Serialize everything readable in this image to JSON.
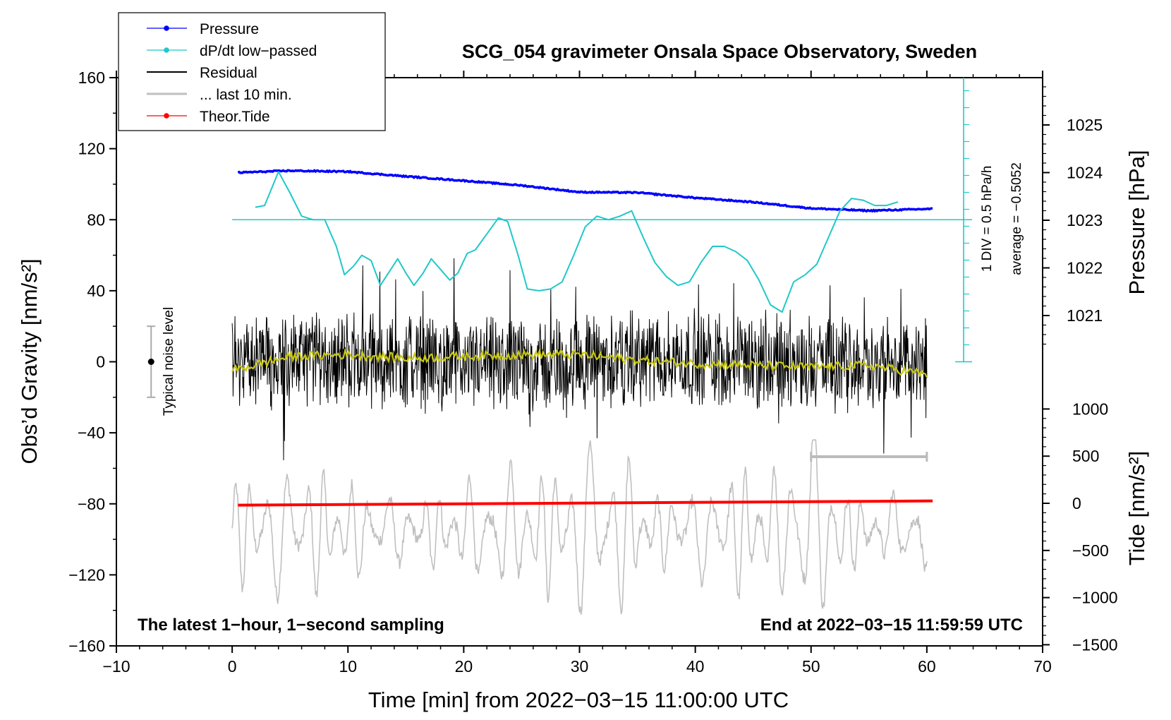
{
  "chart_data": {
    "type": "line",
    "title": "SCG_054 gravimeter Onsala Space Observatory, Sweden",
    "xlabel": "Time [min] from 2022−03−15 11:00:00 UTC",
    "ylabel": "Obs’d Gravity [nm/s²]",
    "ylabel_right_top": "Pressure [hPa]",
    "ylabel_right_bottom": "Tide [nm/s²]",
    "xlim": [
      -10,
      70
    ],
    "ylim": [
      -160,
      160
    ],
    "x_ticks": [
      -10,
      0,
      10,
      20,
      30,
      40,
      50,
      60,
      70
    ],
    "x_tick_labels": [
      "−10",
      "0",
      "10",
      "20",
      "30",
      "40",
      "50",
      "60",
      "70"
    ],
    "y_ticks": [
      -160,
      -120,
      -80,
      -40,
      0,
      40,
      80,
      120,
      160
    ],
    "y_tick_labels": [
      "−160",
      "−120",
      "−80",
      "−40",
      "0",
      "40",
      "80",
      "120",
      "160"
    ],
    "pressure_axis": {
      "ticks": [
        1021,
        1022,
        1023,
        1024,
        1025
      ],
      "labels": [
        "1021",
        "1022",
        "1023",
        "1024",
        "1025"
      ]
    },
    "tide_axis": {
      "ticks": [
        -1500,
        -1000,
        -500,
        0,
        500,
        1000
      ],
      "labels": [
        "−1500",
        "−1000",
        "−500",
        "0",
        "500",
        "1000"
      ]
    },
    "legend": [
      {
        "label": "Pressure",
        "color": "#0000ff",
        "marker": true
      },
      {
        "label": "dP/dt low−passed",
        "color": "#20c8c8",
        "marker": true
      },
      {
        "label": "Residual",
        "color": "#000000",
        "marker": false
      },
      {
        "label": "... last 10 min.",
        "color": "#c0c0c0",
        "marker": false
      },
      {
        "label": "Theor.Tide",
        "color": "#ff0000",
        "marker": true
      }
    ],
    "annotations": {
      "bottom_left": "The latest 1−hour, 1−second sampling",
      "bottom_right": "End at 2022−03−15 11:59:59 UTC",
      "noise_label": "Typical noise level",
      "dpdt_scale": "1 DIV = 0.5 hPa/h",
      "dpdt_average": "average = −0.5052"
    },
    "series": [
      {
        "name": "Pressure",
        "color": "#0000ff",
        "unit": "hPa",
        "x": [
          0.5,
          5,
          10,
          15,
          20,
          25,
          30,
          35,
          40,
          45,
          50,
          55,
          60.5
        ],
        "values": [
          1024.0,
          1024.04,
          1024.02,
          1023.92,
          1023.83,
          1023.73,
          1023.59,
          1023.58,
          1023.47,
          1023.38,
          1023.25,
          1023.2,
          1023.24
        ]
      },
      {
        "name": "dP/dt low−passed",
        "color": "#20c8c8",
        "unit": "ygrid",
        "x": [
          2,
          2.8,
          4,
          5,
          6,
          7,
          8,
          9,
          9.7,
          10.5,
          11.2,
          12,
          12.8,
          13.5,
          14.3,
          15,
          15.7,
          16.5,
          17.2,
          18,
          18.8,
          19.5,
          20.3,
          21,
          22,
          23,
          23.8,
          24.7,
          25.5,
          26.5,
          27.5,
          28.5,
          29.5,
          30.5,
          31.5,
          32.5,
          33.5,
          34.5,
          35.5,
          36.5,
          37.5,
          38.5,
          39.5,
          40.5,
          41.5,
          42.5,
          43.5,
          44.5,
          45.5,
          46.5,
          47.5,
          48.5,
          49.5,
          50.5,
          51.5,
          52.5,
          53.5,
          54.5,
          55.5,
          56.5,
          57.5
        ],
        "values": [
          87,
          88,
          107,
          95,
          82,
          80,
          80,
          65,
          49,
          54,
          60,
          57,
          43,
          50,
          58,
          50,
          43,
          50,
          58,
          52,
          46,
          50,
          61,
          63,
          72,
          81,
          79,
          60,
          41,
          40,
          41,
          45,
          60,
          76,
          82,
          80,
          82,
          85,
          70,
          56,
          48,
          43,
          45,
          56,
          65,
          65,
          62,
          57,
          46,
          32,
          28,
          45,
          49,
          55,
          70,
          85,
          92,
          91,
          88,
          88,
          90
        ]
      },
      {
        "name": "Residual",
        "color": "#000000",
        "unit": "nm/s²",
        "x_range": [
          0,
          60
        ],
        "mean_envelope": [
          -25,
          25
        ],
        "extremes": [
          -60,
          60
        ]
      },
      {
        "name": "... last 10 min.",
        "color": "#c0c0c0",
        "unit": "nm/s²",
        "x_range": [
          0,
          60
        ]
      },
      {
        "name": "Theor.Tide",
        "color": "#ff0000",
        "unit": "nm/s²",
        "x": [
          0.5,
          60.5
        ],
        "values": [
          -20,
          25
        ]
      },
      {
        "name": "Smoothed residual",
        "color": "#c8c814",
        "unit": "nm/s²",
        "x": [
          0,
          5,
          10,
          15,
          20,
          25,
          30,
          35,
          40,
          45,
          50,
          55,
          60
        ],
        "values": [
          -5,
          3,
          4,
          2,
          3,
          4,
          4,
          1,
          -1,
          -2,
          -3,
          -2,
          -7
        ]
      }
    ],
    "noise_bar": {
      "x": -7,
      "center": 0,
      "low": -20,
      "high": 20
    },
    "last10_bar": {
      "x_start": 50,
      "x_end": 60
    },
    "grid": false
  }
}
